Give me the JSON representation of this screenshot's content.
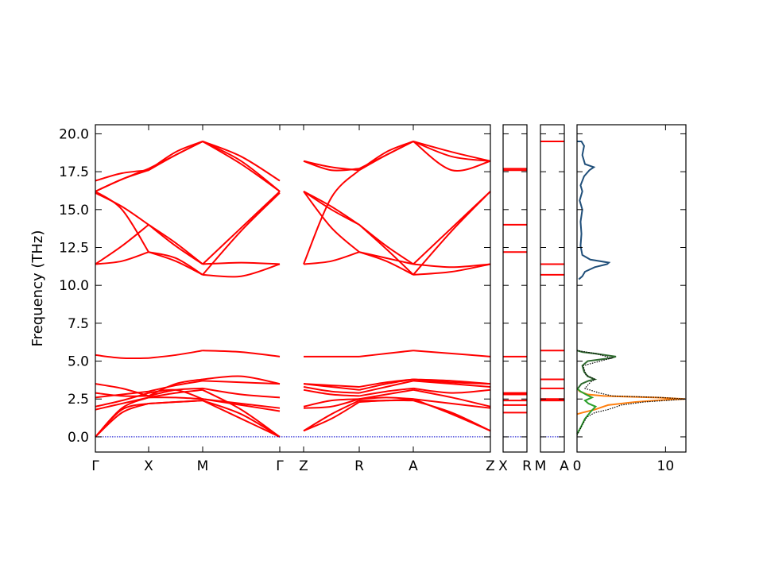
{
  "chart_data": {
    "type": "line",
    "ylabel": "Frequency (THz)",
    "ylim": [
      -1.0,
      20.6
    ],
    "yticks": [
      "0.0",
      "2.5",
      "5.0",
      "7.5",
      "10.0",
      "12.5",
      "15.0",
      "17.5",
      "20.0"
    ],
    "ytick_values": [
      0.0,
      2.5,
      5.0,
      7.5,
      10.0,
      12.5,
      15.0,
      17.5,
      20.0
    ],
    "band_color": "#ff0000",
    "zero_line_color": "#0000cc",
    "panels": [
      {
        "id": "main",
        "x_labels": [
          "Γ",
          "X",
          "M",
          "Γ",
          "Z",
          "R",
          "A",
          "Z"
        ],
        "segments": [
          {
            "from": "Γ",
            "to": "X",
            "bands": [
              [
                0.0,
                1.8,
                2.2
              ],
              [
                0.0,
                1.6,
                2.2
              ],
              [
                0.0,
                1.9,
                2.6
              ],
              [
                1.8,
                2.2,
                2.6
              ],
              [
                2.0,
                2.4,
                2.9
              ],
              [
                2.6,
                2.8,
                3.0
              ],
              [
                2.9,
                2.7,
                2.7
              ],
              [
                3.5,
                3.2,
                2.7
              ],
              [
                5.4,
                5.2,
                5.2
              ],
              [
                11.4,
                11.6,
                12.2
              ],
              [
                11.4,
                12.6,
                14.0
              ],
              [
                16.1,
                15.2,
                14.0
              ],
              [
                16.2,
                15.0,
                12.2
              ],
              [
                16.2,
                17.0,
                17.6
              ],
              [
                16.9,
                17.4,
                17.6
              ],
              [
                16.2,
                17.0,
                17.7
              ]
            ]
          },
          {
            "from": "X",
            "to": "M",
            "bands": [
              [
                2.2,
                2.3,
                2.4
              ],
              [
                2.2,
                2.3,
                2.4
              ],
              [
                2.6,
                2.9,
                3.1
              ],
              [
                2.6,
                2.6,
                2.5
              ],
              [
                2.9,
                3.1,
                2.5
              ],
              [
                3.0,
                3.4,
                3.7
              ],
              [
                2.7,
                3.1,
                3.2
              ],
              [
                2.7,
                3.5,
                3.8
              ],
              [
                5.2,
                5.4,
                5.7
              ],
              [
                12.2,
                11.8,
                10.7
              ],
              [
                14.0,
                12.6,
                11.4
              ],
              [
                14.0,
                12.8,
                11.4
              ],
              [
                12.2,
                11.6,
                10.7
              ],
              [
                17.6,
                18.8,
                19.5
              ],
              [
                17.6,
                18.6,
                19.5
              ],
              [
                17.7,
                18.6,
                19.5
              ]
            ]
          },
          {
            "from": "M",
            "to": "Γ",
            "bands": [
              [
                2.4,
                1.5,
                0.0
              ],
              [
                2.4,
                1.2,
                0.0
              ],
              [
                3.1,
                1.8,
                0.0
              ],
              [
                2.5,
                2.1,
                1.7
              ],
              [
                2.5,
                2.2,
                1.9
              ],
              [
                3.7,
                3.6,
                3.5
              ],
              [
                3.2,
                2.8,
                2.6
              ],
              [
                3.8,
                4.0,
                3.5
              ],
              [
                5.7,
                5.6,
                5.3
              ],
              [
                10.7,
                10.6,
                11.4
              ],
              [
                11.4,
                11.5,
                11.4
              ],
              [
                11.4,
                13.8,
                16.2
              ],
              [
                10.7,
                13.6,
                16.1
              ],
              [
                19.5,
                18.5,
                16.9
              ],
              [
                19.5,
                18.2,
                16.2
              ],
              [
                19.5,
                18.0,
                16.2
              ]
            ]
          },
          {
            "from": "Z",
            "to": "R",
            "bands": [
              [
                0.4,
                1.2,
                2.3
              ],
              [
                0.4,
                1.5,
                2.4
              ],
              [
                1.9,
                2.0,
                2.5
              ],
              [
                2.0,
                2.4,
                2.5
              ],
              [
                3.1,
                2.8,
                2.7
              ],
              [
                3.3,
                3.0,
                2.9
              ],
              [
                3.5,
                3.3,
                3.1
              ],
              [
                3.5,
                3.4,
                3.3
              ],
              [
                5.3,
                5.3,
                5.3
              ],
              [
                11.4,
                11.6,
                12.2
              ],
              [
                11.4,
                15.8,
                17.6
              ],
              [
                16.2,
                15.0,
                14.0
              ],
              [
                16.2,
                13.8,
                12.2
              ],
              [
                18.2,
                17.6,
                17.7
              ],
              [
                18.2,
                17.8,
                17.6
              ],
              [
                16.2,
                15.2,
                14.0
              ]
            ]
          },
          {
            "from": "R",
            "to": "A",
            "bands": [
              [
                2.3,
                2.4,
                2.4
              ],
              [
                2.4,
                2.4,
                2.5
              ],
              [
                2.5,
                2.6,
                2.5
              ],
              [
                2.5,
                2.8,
                3.1
              ],
              [
                2.7,
                3.0,
                3.2
              ],
              [
                2.9,
                3.3,
                3.7
              ],
              [
                3.1,
                3.5,
                3.8
              ],
              [
                3.3,
                3.6,
                3.8
              ],
              [
                5.3,
                5.5,
                5.7
              ],
              [
                12.2,
                11.6,
                10.7
              ],
              [
                17.6,
                18.8,
                19.5
              ],
              [
                14.0,
                12.6,
                11.4
              ],
              [
                12.2,
                11.8,
                11.4
              ],
              [
                17.7,
                18.6,
                19.5
              ],
              [
                17.6,
                18.6,
                19.5
              ],
              [
                14.0,
                12.4,
                10.7
              ]
            ]
          },
          {
            "from": "A",
            "to": "Z",
            "bands": [
              [
                2.4,
                1.6,
                0.4
              ],
              [
                2.5,
                1.5,
                0.4
              ],
              [
                2.5,
                2.2,
                1.9
              ],
              [
                3.1,
                2.6,
                2.0
              ],
              [
                3.2,
                2.9,
                3.1
              ],
              [
                3.7,
                3.5,
                3.3
              ],
              [
                3.8,
                3.6,
                3.5
              ],
              [
                3.8,
                3.7,
                3.5
              ],
              [
                5.7,
                5.5,
                5.3
              ],
              [
                10.7,
                10.9,
                11.4
              ],
              [
                19.5,
                18.5,
                18.2
              ],
              [
                11.4,
                11.2,
                11.4
              ],
              [
                11.4,
                13.8,
                16.2
              ],
              [
                19.5,
                18.8,
                18.2
              ],
              [
                19.5,
                17.6,
                18.2
              ],
              [
                10.7,
                13.6,
                16.2
              ]
            ]
          }
        ]
      },
      {
        "id": "X",
        "x_labels": [
          "X",
          "R"
        ],
        "levels": [
          1.6,
          2.1,
          2.4,
          2.8,
          2.9,
          5.3,
          12.2,
          14.0,
          17.6,
          17.7
        ]
      },
      {
        "id": "M",
        "x_labels": [
          "M",
          "A"
        ],
        "levels": [
          2.4,
          2.5,
          3.2,
          3.8,
          5.7,
          10.7,
          11.4,
          19.5
        ]
      }
    ],
    "dos": {
      "xlim": [
        0,
        12.3
      ],
      "xtick_labels": [
        "0",
        "10"
      ],
      "xtick_values": [
        0,
        10
      ],
      "series": [
        {
          "color": "#1f4e79",
          "points": [
            [
              0.2,
              10.4
            ],
            [
              0.6,
              10.6
            ],
            [
              0.9,
              10.9
            ],
            [
              2.0,
              11.2
            ],
            [
              3.4,
              11.4
            ],
            [
              3.6,
              11.5
            ],
            [
              1.5,
              11.7
            ],
            [
              0.6,
              12.0
            ],
            [
              0.4,
              12.6
            ],
            [
              0.5,
              13.4
            ],
            [
              0.4,
              14.2
            ],
            [
              0.6,
              15.0
            ],
            [
              0.3,
              15.6
            ],
            [
              0.6,
              16.2
            ],
            [
              0.4,
              16.6
            ],
            [
              0.8,
              17.2
            ],
            [
              1.4,
              17.6
            ],
            [
              1.9,
              17.8
            ],
            [
              0.9,
              18.0
            ],
            [
              0.6,
              18.6
            ],
            [
              0.8,
              19.2
            ],
            [
              0.5,
              19.5
            ],
            [
              0.0,
              19.5
            ]
          ]
        },
        {
          "color": "#2f6b2f",
          "points": [
            [
              0.1,
              3.2
            ],
            [
              0.5,
              3.5
            ],
            [
              1.3,
              3.7
            ],
            [
              2.0,
              3.8
            ],
            [
              1.2,
              4.0
            ],
            [
              0.8,
              4.3
            ],
            [
              0.6,
              4.7
            ],
            [
              1.2,
              5.0
            ],
            [
              3.8,
              5.2
            ],
            [
              4.4,
              5.3
            ],
            [
              2.0,
              5.5
            ],
            [
              0.6,
              5.6
            ],
            [
              0.0,
              5.7
            ]
          ]
        },
        {
          "color": "#ff7f0e",
          "points": [
            [
              0.0,
              1.5
            ],
            [
              0.6,
              1.6
            ],
            [
              2.0,
              1.8
            ],
            [
              3.5,
              2.1
            ],
            [
              6.5,
              2.3
            ],
            [
              10.0,
              2.45
            ],
            [
              12.2,
              2.5
            ],
            [
              9.0,
              2.6
            ],
            [
              3.0,
              2.7
            ],
            [
              1.2,
              2.8
            ],
            [
              0.3,
              3.0
            ],
            [
              0.0,
              3.2
            ]
          ]
        },
        {
          "color": "#2ca02c",
          "points": [
            [
              0.0,
              0.2
            ],
            [
              0.4,
              0.6
            ],
            [
              0.9,
              1.2
            ],
            [
              1.6,
              1.7
            ],
            [
              2.1,
              2.0
            ],
            [
              1.3,
              2.2
            ],
            [
              0.9,
              2.4
            ],
            [
              1.7,
              2.6
            ],
            [
              1.0,
              2.8
            ],
            [
              0.4,
              3.0
            ],
            [
              0.0,
              3.2
            ]
          ]
        },
        {
          "color": "#000000",
          "dashed": true,
          "points": [
            [
              0.0,
              0.1
            ],
            [
              0.5,
              0.7
            ],
            [
              1.1,
              1.3
            ],
            [
              2.0,
              1.6
            ],
            [
              3.5,
              1.8
            ],
            [
              5.0,
              2.1
            ],
            [
              7.5,
              2.3
            ],
            [
              10.0,
              2.4
            ],
            [
              12.2,
              2.5
            ],
            [
              9.5,
              2.6
            ],
            [
              4.0,
              2.7
            ],
            [
              2.5,
              2.9
            ],
            [
              0.9,
              3.2
            ],
            [
              1.5,
              3.6
            ],
            [
              2.0,
              3.8
            ],
            [
              1.0,
              4.1
            ],
            [
              0.7,
              4.7
            ],
            [
              3.9,
              5.2
            ],
            [
              2.1,
              5.5
            ],
            [
              0.0,
              5.7
            ]
          ]
        }
      ]
    }
  }
}
